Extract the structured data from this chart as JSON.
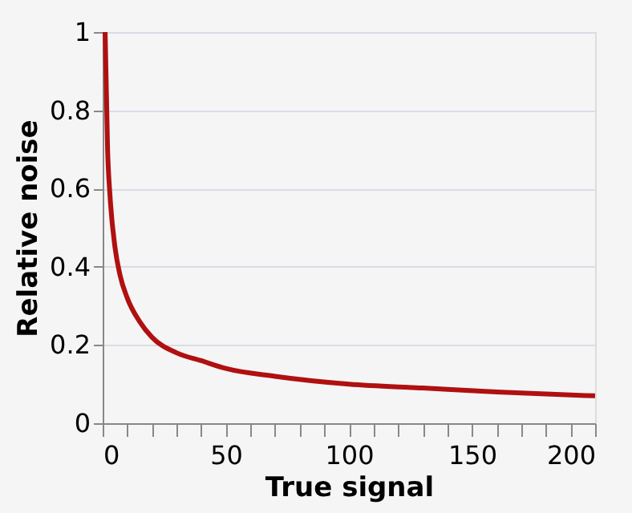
{
  "chart_data": {
    "type": "line",
    "xlabel": "True signal",
    "ylabel": "Relative noise",
    "x": [
      1,
      2,
      3,
      5,
      7,
      10,
      15,
      20,
      30,
      40,
      50,
      70,
      100,
      130,
      160,
      200
    ],
    "series": [
      {
        "color": "#b01010",
        "values": [
          1,
          0.7,
          0.58,
          0.45,
          0.38,
          0.32,
          0.26,
          0.22,
          0.18,
          0.16,
          0.14,
          0.12,
          0.1,
          0.09,
          0.08,
          0.07
        ]
      }
    ],
    "xlim": [
      0,
      200
    ],
    "ylim": [
      0,
      1
    ],
    "xticks": [
      0,
      {
        "value": 10,
        "label": null
      },
      {
        "value": 20,
        "label": null
      },
      {
        "value": 30,
        "label": null
      },
      {
        "value": 40,
        "label": null
      },
      50,
      {
        "value": 60,
        "label": null
      },
      {
        "value": 70,
        "label": null
      },
      {
        "value": 80,
        "label": null
      },
      {
        "value": 90,
        "label": null
      },
      100,
      {
        "value": 110,
        "label": null
      },
      {
        "value": 120,
        "label": null
      },
      {
        "value": 130,
        "label": null
      },
      {
        "value": 140,
        "label": null
      },
      150,
      {
        "value": 160,
        "label": null
      },
      {
        "value": 170,
        "label": null
      },
      {
        "value": 180,
        "label": null
      },
      {
        "value": 190,
        "label": null
      },
      200
    ],
    "yticks": [
      0,
      0.2,
      0.4,
      0.6,
      0.8,
      {
        "value": 1,
        "label": "1"
      }
    ],
    "grid": "y",
    "marker": "none",
    "line_style": "solid"
  }
}
